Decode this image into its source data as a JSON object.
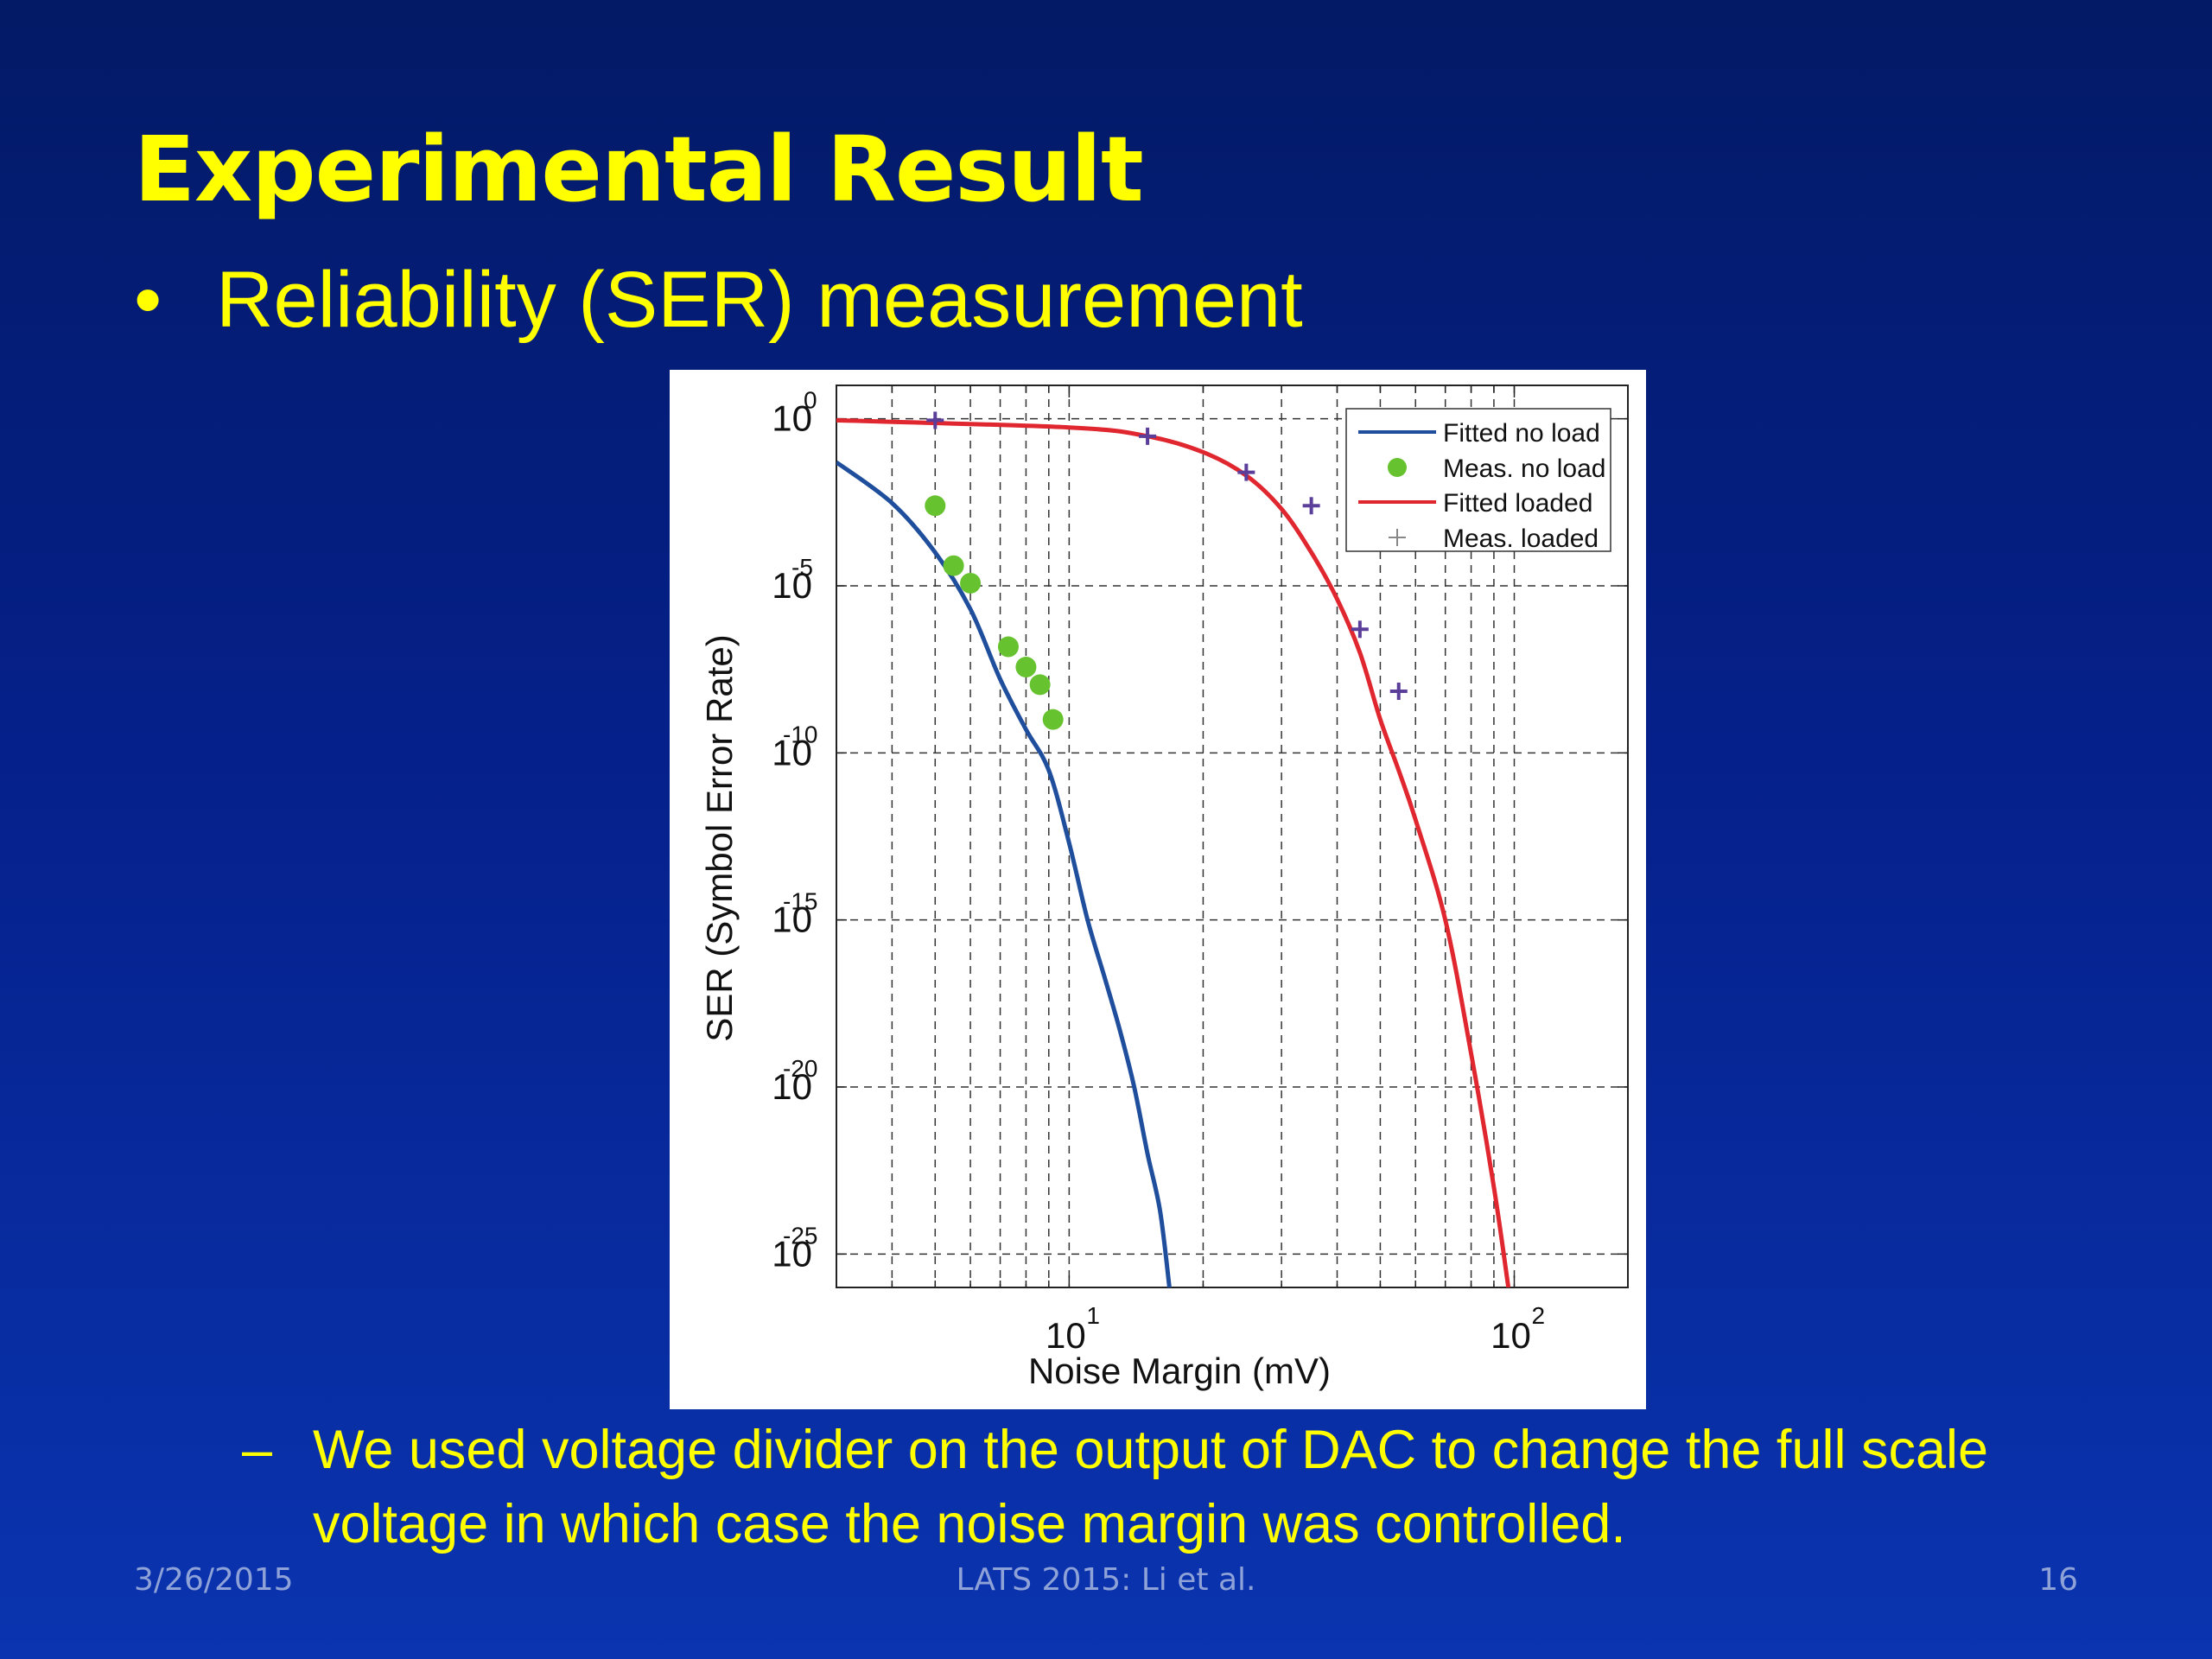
{
  "slide": {
    "title": "Experimental Result",
    "bullet": "Reliability (SER) measurement",
    "bullet_marker": "•",
    "sub_bullet_marker": "–",
    "sub_bullet": "We used voltage divider on the output of DAC to change the full scale voltage in which case the noise margin was controlled.",
    "footer_date": "3/26/2015",
    "footer_center": "LATS 2015: Li et al.",
    "footer_page": "16"
  },
  "chart_data": {
    "type": "line",
    "title": "",
    "xlabel": "Noise Margin (mV)",
    "ylabel": "SER (Symbol Error Rate)",
    "xscale": "log",
    "yscale": "log",
    "xlim": [
      3,
      180
    ],
    "ylim": [
      1e-26,
      10
    ],
    "x_ticks": [
      {
        "base": "10",
        "exp": "1",
        "value": 10
      },
      {
        "base": "10",
        "exp": "2",
        "value": 100
      }
    ],
    "y_ticks": [
      {
        "base": "10",
        "exp": "0",
        "value": 1
      },
      {
        "base": "10",
        "exp": "-5",
        "value": 1e-05
      },
      {
        "base": "10",
        "exp": "-10",
        "value": 1e-10
      },
      {
        "base": "10",
        "exp": "-15",
        "value": 1e-15
      },
      {
        "base": "10",
        "exp": "-20",
        "value": 1e-20
      },
      {
        "base": "10",
        "exp": "-25",
        "value": 1e-25
      }
    ],
    "grid": true,
    "legend_position": "top-right",
    "series": [
      {
        "name": "Fitted no load",
        "kind": "line",
        "color": "#1f4e9c",
        "points": [
          [
            3,
            0.05
          ],
          [
            4,
            0.003
          ],
          [
            5,
            0.0001
          ],
          [
            6,
            2e-06
          ],
          [
            7,
            1.6e-08
          ],
          [
            8,
            5e-10
          ],
          [
            9,
            3e-11
          ],
          [
            10,
            2e-13
          ],
          [
            11,
            1e-15
          ],
          [
            12,
            2e-17
          ],
          [
            13,
            5e-19
          ],
          [
            14,
            1e-20
          ],
          [
            15,
            1e-22
          ],
          [
            16,
            2e-24
          ],
          [
            16.8,
            1e-26
          ]
        ]
      },
      {
        "name": "Meas. no load",
        "kind": "scatter",
        "marker": "circle",
        "color": "#66c22e",
        "points": [
          [
            5,
            0.0025
          ],
          [
            5.5,
            4e-05
          ],
          [
            6,
            1.2e-05
          ],
          [
            7.3,
            1.5e-07
          ],
          [
            8,
            3.7e-08
          ],
          [
            8.6,
            1.1e-08
          ],
          [
            9.2,
            1e-09
          ]
        ]
      },
      {
        "name": "Fitted loaded",
        "kind": "line",
        "color": "#e0262e",
        "points": [
          [
            3,
            0.9
          ],
          [
            10,
            0.55
          ],
          [
            15,
            0.3
          ],
          [
            20,
            0.1
          ],
          [
            25,
            0.02
          ],
          [
            30,
            0.002
          ],
          [
            35,
            0.0001
          ],
          [
            40,
            4e-06
          ],
          [
            45,
            1e-07
          ],
          [
            50,
            1e-09
          ],
          [
            55,
            3e-11
          ],
          [
            60,
            1e-12
          ],
          [
            70,
            1e-15
          ],
          [
            80,
            1e-19
          ],
          [
            90,
            1e-23
          ],
          [
            97,
            1e-26
          ]
        ]
      },
      {
        "name": "Meas. loaded",
        "kind": "scatter",
        "marker": "plus",
        "color": "#5a3e9a",
        "points": [
          [
            5,
            0.9
          ],
          [
            15,
            0.3
          ],
          [
            25,
            0.025
          ],
          [
            35,
            0.0025
          ],
          [
            45,
            5e-07
          ],
          [
            55,
            7e-09
          ]
        ]
      }
    ]
  }
}
